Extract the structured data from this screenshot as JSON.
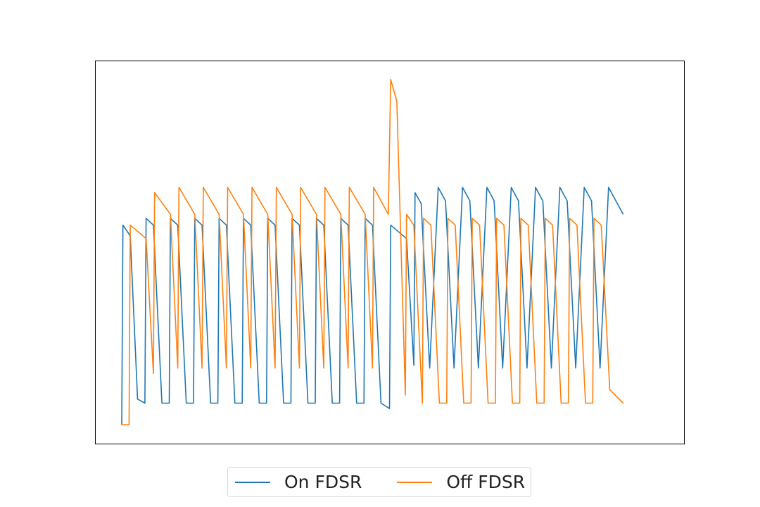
{
  "chart_data": {
    "type": "line",
    "title": "",
    "xlabel": "",
    "ylabel": "",
    "axes_ticks_visible": false,
    "grid": false,
    "legend_placement": "bottom-center",
    "xlim": [
      0,
      22
    ],
    "ylim": [
      -0.05,
      1.37
    ],
    "series": [
      {
        "name": "On FDSR",
        "color": "#1f77b4",
        "points": [
          [
            0,
            0.02
          ],
          [
            0.05,
            0.76
          ],
          [
            0.35,
            0.72
          ],
          [
            0.65,
            0.115
          ],
          [
            0.95,
            0.1
          ],
          [
            1.0,
            0.785
          ],
          [
            1.3,
            0.76
          ],
          [
            1.65,
            0.1
          ],
          [
            1.95,
            0.1
          ],
          [
            2.0,
            0.785
          ],
          [
            2.3,
            0.76
          ],
          [
            2.65,
            0.1
          ],
          [
            2.95,
            0.1
          ],
          [
            3.0,
            0.785
          ],
          [
            3.3,
            0.76
          ],
          [
            3.65,
            0.1
          ],
          [
            3.95,
            0.1
          ],
          [
            4.0,
            0.785
          ],
          [
            4.3,
            0.76
          ],
          [
            4.65,
            0.1
          ],
          [
            4.95,
            0.1
          ],
          [
            5.0,
            0.785
          ],
          [
            5.3,
            0.76
          ],
          [
            5.65,
            0.1
          ],
          [
            5.95,
            0.1
          ],
          [
            6.0,
            0.785
          ],
          [
            6.3,
            0.76
          ],
          [
            6.65,
            0.1
          ],
          [
            6.95,
            0.1
          ],
          [
            7.0,
            0.785
          ],
          [
            7.3,
            0.76
          ],
          [
            7.65,
            0.1
          ],
          [
            7.95,
            0.1
          ],
          [
            8.0,
            0.785
          ],
          [
            8.3,
            0.76
          ],
          [
            8.65,
            0.1
          ],
          [
            8.95,
            0.1
          ],
          [
            9.0,
            0.785
          ],
          [
            9.3,
            0.76
          ],
          [
            9.65,
            0.1
          ],
          [
            9.95,
            0.1
          ],
          [
            10.0,
            0.785
          ],
          [
            10.3,
            0.76
          ],
          [
            10.65,
            0.1
          ],
          [
            11.0,
            0.08
          ],
          [
            11.05,
            0.76
          ],
          [
            11.7,
            0.71
          ],
          [
            12.0,
            0.24
          ],
          [
            12.05,
            0.88
          ],
          [
            12.3,
            0.84
          ],
          [
            12.65,
            0.23
          ],
          [
            13.0,
            0.9
          ],
          [
            13.3,
            0.85
          ],
          [
            13.65,
            0.23
          ],
          [
            14.0,
            0.9
          ],
          [
            14.3,
            0.85
          ],
          [
            14.65,
            0.23
          ],
          [
            15.0,
            0.9
          ],
          [
            15.3,
            0.85
          ],
          [
            15.65,
            0.23
          ],
          [
            16.0,
            0.9
          ],
          [
            16.3,
            0.85
          ],
          [
            16.65,
            0.23
          ],
          [
            17.0,
            0.9
          ],
          [
            17.3,
            0.85
          ],
          [
            17.65,
            0.23
          ],
          [
            18.0,
            0.9
          ],
          [
            18.3,
            0.85
          ],
          [
            18.65,
            0.23
          ],
          [
            19.0,
            0.9
          ],
          [
            19.3,
            0.85
          ],
          [
            19.65,
            0.23
          ],
          [
            20.0,
            0.9
          ],
          [
            20.6,
            0.8
          ]
        ]
      },
      {
        "name": "Off FDSR",
        "color": "#ff7f0e",
        "points": [
          [
            0,
            0.02
          ],
          [
            0.3,
            0.02
          ],
          [
            0.35,
            0.76
          ],
          [
            1.0,
            0.71
          ],
          [
            1.3,
            0.21
          ],
          [
            1.35,
            0.88
          ],
          [
            2.0,
            0.8
          ],
          [
            2.3,
            0.23
          ],
          [
            2.35,
            0.9
          ],
          [
            3.0,
            0.8
          ],
          [
            3.3,
            0.23
          ],
          [
            3.35,
            0.9
          ],
          [
            4.0,
            0.8
          ],
          [
            4.3,
            0.23
          ],
          [
            4.35,
            0.9
          ],
          [
            5.0,
            0.8
          ],
          [
            5.3,
            0.23
          ],
          [
            5.35,
            0.9
          ],
          [
            6.0,
            0.8
          ],
          [
            6.3,
            0.23
          ],
          [
            6.35,
            0.9
          ],
          [
            7.0,
            0.8
          ],
          [
            7.3,
            0.23
          ],
          [
            7.35,
            0.9
          ],
          [
            8.0,
            0.8
          ],
          [
            8.3,
            0.23
          ],
          [
            8.35,
            0.9
          ],
          [
            9.0,
            0.8
          ],
          [
            9.3,
            0.23
          ],
          [
            9.35,
            0.9
          ],
          [
            10.0,
            0.8
          ],
          [
            10.3,
            0.23
          ],
          [
            10.35,
            0.9
          ],
          [
            10.95,
            0.8
          ],
          [
            11.05,
            1.3
          ],
          [
            11.3,
            1.22
          ],
          [
            11.65,
            0.13
          ],
          [
            11.7,
            0.8
          ],
          [
            12.0,
            0.76
          ],
          [
            12.35,
            0.1
          ],
          [
            12.4,
            0.785
          ],
          [
            12.7,
            0.76
          ],
          [
            13.05,
            0.1
          ],
          [
            13.35,
            0.1
          ],
          [
            13.4,
            0.785
          ],
          [
            13.7,
            0.76
          ],
          [
            14.05,
            0.1
          ],
          [
            14.35,
            0.1
          ],
          [
            14.4,
            0.785
          ],
          [
            14.7,
            0.76
          ],
          [
            15.05,
            0.1
          ],
          [
            15.35,
            0.1
          ],
          [
            15.4,
            0.785
          ],
          [
            15.7,
            0.76
          ],
          [
            16.05,
            0.1
          ],
          [
            16.35,
            0.1
          ],
          [
            16.4,
            0.785
          ],
          [
            16.7,
            0.76
          ],
          [
            17.05,
            0.1
          ],
          [
            17.35,
            0.1
          ],
          [
            17.4,
            0.785
          ],
          [
            17.7,
            0.76
          ],
          [
            18.05,
            0.1
          ],
          [
            18.35,
            0.1
          ],
          [
            18.4,
            0.785
          ],
          [
            18.7,
            0.76
          ],
          [
            19.05,
            0.1
          ],
          [
            19.35,
            0.1
          ],
          [
            19.4,
            0.785
          ],
          [
            19.7,
            0.76
          ],
          [
            20.05,
            0.15
          ],
          [
            20.6,
            0.1
          ]
        ]
      }
    ]
  }
}
